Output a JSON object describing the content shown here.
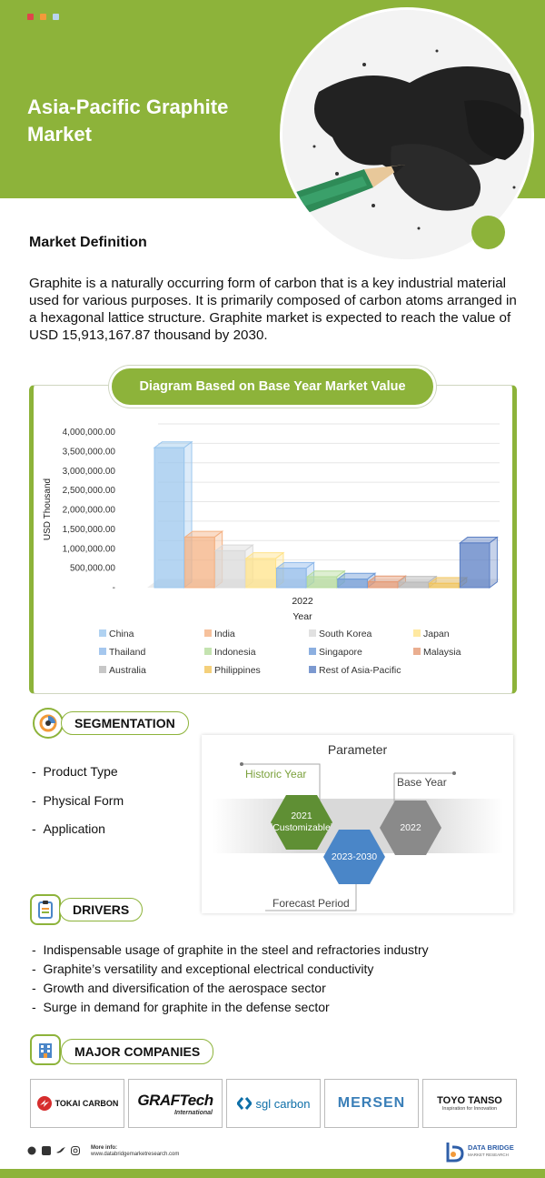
{
  "header": {
    "title": "Asia-Pacific Graphite Market",
    "dot_colors": [
      "#e0454b",
      "#f29a3a",
      "#b9d4ef"
    ]
  },
  "definition": {
    "heading": "Market Definition",
    "text": "Graphite is a naturally occurring form of carbon that is a key industrial material used for various purposes. It is primarily composed of carbon atoms arranged in a hexagonal lattice structure. Graphite market is expected to reach the value of USD 15,913,167.87 thousand by 2030."
  },
  "chart_section": {
    "title": "Diagram Based on Base Year Market Value"
  },
  "chart_data": {
    "type": "bar",
    "title": "Diagram Based on Base Year Market Value",
    "xlabel": "Year",
    "ylabel": "USD Thousand",
    "categories": [
      "2022"
    ],
    "ylim": [
      0,
      4000000
    ],
    "ytick_labels": [
      "-",
      "500,000.00",
      "1,000,000.00",
      "1,500,000.00",
      "2,000,000.00",
      "2,500,000.00",
      "3,000,000.00",
      "3,500,000.00",
      "4,000,000.00"
    ],
    "series": [
      {
        "name": "China",
        "values": [
          3600000
        ],
        "color": "#9cc7ee"
      },
      {
        "name": "India",
        "values": [
          1300000
        ],
        "color": "#f4b183"
      },
      {
        "name": "South Korea",
        "values": [
          950000
        ],
        "color": "#d9d9d9"
      },
      {
        "name": "Japan",
        "values": [
          750000
        ],
        "color": "#ffe38a"
      },
      {
        "name": "Thailand",
        "values": [
          500000
        ],
        "color": "#8fb9ea"
      },
      {
        "name": "Indonesia",
        "values": [
          280000
        ],
        "color": "#b5dc9c"
      },
      {
        "name": "Singapore",
        "values": [
          220000
        ],
        "color": "#6f9bd8"
      },
      {
        "name": "Malaysia",
        "values": [
          150000
        ],
        "color": "#e59a74"
      },
      {
        "name": "Australia",
        "values": [
          140000
        ],
        "color": "#b9b9b9"
      },
      {
        "name": "Philippines",
        "values": [
          110000
        ],
        "color": "#f1c45a"
      },
      {
        "name": "Rest of Asia-Pacific",
        "values": [
          1150000
        ],
        "color": "#5b7fc4"
      }
    ],
    "legend_position": "bottom"
  },
  "segmentation": {
    "heading": "SEGMENTATION",
    "items": [
      "Product Type",
      "Physical Form",
      "Application"
    ]
  },
  "parameter": {
    "title": "Parameter",
    "historic_label": "Historic Year",
    "base_label": "Base Year",
    "forecast_label": "Forecast Period",
    "historic_value": "2021 (Customizable)",
    "forecast_value": "2023-2030",
    "base_value": "2022",
    "colors": {
      "historic": "#5f8f34",
      "forecast": "#4a86c8",
      "base": "#8a8a8a"
    }
  },
  "drivers": {
    "heading": "DRIVERS",
    "items": [
      "Indispensable usage of graphite in the steel and refractories industry",
      "Graphite’s versatility and exceptional electrical conductivity",
      "Growth and diversification of the aerospace sector",
      "Surge in demand for graphite in the defense sector"
    ]
  },
  "companies": {
    "heading": "MAJOR COMPANIES",
    "logos": [
      {
        "name": "TOKAI CARBON"
      },
      {
        "name": "GRAFTech",
        "sub": "International"
      },
      {
        "name": "sgl carbon"
      },
      {
        "name": "MERSEN"
      },
      {
        "name": "TOYO TANSO",
        "sub": "Inspiration for Innovation"
      }
    ]
  },
  "footer": {
    "more_info_label": "More info:",
    "url": "www.databridgemarketresearch.com",
    "brand": "DATA BRIDGE",
    "brand_sub": "MARKET RESEARCH"
  },
  "theme": {
    "accent": "#8db33a"
  }
}
